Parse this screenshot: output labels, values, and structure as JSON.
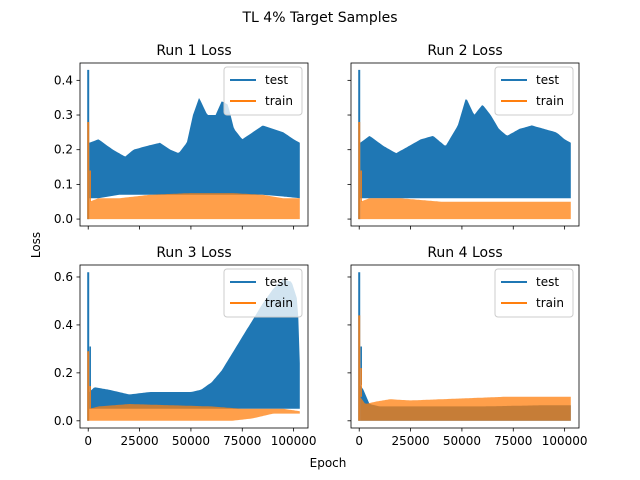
{
  "figure": {
    "suptitle": "TL 4% Target Samples",
    "xlabel": "Epoch",
    "ylabel": "Loss"
  },
  "colors": {
    "test": "#1f77b4",
    "train": "#ff7f0e",
    "overlap": "#c07a3a"
  },
  "chart_data": [
    {
      "type": "line",
      "title": "Run 1 Loss",
      "xlim": [
        -4000,
        107000
      ],
      "ylim": [
        -0.02,
        0.45
      ],
      "yticks": [
        0.0,
        0.1,
        0.2,
        0.3,
        0.4
      ],
      "xticks": [
        0,
        25000,
        50000,
        75000,
        100000
      ],
      "legend": [
        "test",
        "train"
      ],
      "legend_position": "top-right",
      "series": [
        {
          "name": "test",
          "spike": 0.43,
          "upper": [
            [
              500,
              0.22
            ],
            [
              5000,
              0.23
            ],
            [
              12000,
              0.2
            ],
            [
              18000,
              0.18
            ],
            [
              22000,
              0.2
            ],
            [
              28000,
              0.21
            ],
            [
              35000,
              0.22
            ],
            [
              40000,
              0.2
            ],
            [
              44000,
              0.19
            ],
            [
              48000,
              0.22
            ],
            [
              51000,
              0.3
            ],
            [
              54000,
              0.35
            ],
            [
              58000,
              0.3
            ],
            [
              62000,
              0.3
            ],
            [
              65000,
              0.34
            ],
            [
              68000,
              0.33
            ],
            [
              71000,
              0.26
            ],
            [
              75000,
              0.23
            ],
            [
              80000,
              0.25
            ],
            [
              85000,
              0.27
            ],
            [
              90000,
              0.26
            ],
            [
              95000,
              0.25
            ],
            [
              100000,
              0.23
            ],
            [
              103000,
              0.22
            ]
          ],
          "lower": [
            [
              500,
              0.06
            ],
            [
              5000,
              0.06
            ],
            [
              15000,
              0.07
            ],
            [
              25000,
              0.07
            ],
            [
              35000,
              0.07
            ],
            [
              50000,
              0.07
            ],
            [
              70000,
              0.07
            ],
            [
              85000,
              0.07
            ],
            [
              95000,
              0.065
            ],
            [
              103000,
              0.06
            ]
          ]
        },
        {
          "name": "train",
          "spike": 0.28,
          "upper": [
            [
              500,
              0.05
            ],
            [
              5000,
              0.06
            ],
            [
              15000,
              0.06
            ],
            [
              30000,
              0.07
            ],
            [
              50000,
              0.075
            ],
            [
              70000,
              0.075
            ],
            [
              85000,
              0.07
            ],
            [
              95000,
              0.06
            ],
            [
              103000,
              0.06
            ]
          ],
          "lower": [
            [
              500,
              0.0
            ],
            [
              103000,
              0.0
            ]
          ]
        }
      ]
    },
    {
      "type": "line",
      "title": "Run 2 Loss",
      "xlim": [
        -4000,
        107000
      ],
      "ylim": [
        -0.02,
        0.45
      ],
      "yticks": [
        0.0,
        0.1,
        0.2,
        0.3,
        0.4
      ],
      "xticks": [
        0,
        25000,
        50000,
        75000,
        100000
      ],
      "legend": [
        "test",
        "train"
      ],
      "legend_position": "top-right",
      "series": [
        {
          "name": "test",
          "spike": 0.43,
          "upper": [
            [
              500,
              0.22
            ],
            [
              5000,
              0.24
            ],
            [
              12000,
              0.21
            ],
            [
              18000,
              0.19
            ],
            [
              24000,
              0.21
            ],
            [
              30000,
              0.23
            ],
            [
              36000,
              0.24
            ],
            [
              42000,
              0.21
            ],
            [
              48000,
              0.27
            ],
            [
              52000,
              0.35
            ],
            [
              56000,
              0.3
            ],
            [
              60000,
              0.33
            ],
            [
              64000,
              0.3
            ],
            [
              68000,
              0.26
            ],
            [
              72000,
              0.24
            ],
            [
              78000,
              0.26
            ],
            [
              84000,
              0.27
            ],
            [
              90000,
              0.26
            ],
            [
              96000,
              0.25
            ],
            [
              100000,
              0.23
            ],
            [
              103000,
              0.22
            ]
          ],
          "lower": [
            [
              500,
              0.06
            ],
            [
              10000,
              0.06
            ],
            [
              25000,
              0.06
            ],
            [
              50000,
              0.06
            ],
            [
              75000,
              0.06
            ],
            [
              103000,
              0.06
            ]
          ]
        },
        {
          "name": "train",
          "spike": 0.28,
          "upper": [
            [
              500,
              0.05
            ],
            [
              5000,
              0.06
            ],
            [
              20000,
              0.06
            ],
            [
              40000,
              0.05
            ],
            [
              60000,
              0.05
            ],
            [
              80000,
              0.05
            ],
            [
              103000,
              0.05
            ]
          ],
          "lower": [
            [
              500,
              0.0
            ],
            [
              103000,
              0.0
            ]
          ]
        }
      ]
    },
    {
      "type": "line",
      "title": "Run 3 Loss",
      "xlim": [
        -4000,
        107000
      ],
      "ylim": [
        -0.03,
        0.65
      ],
      "yticks": [
        0.0,
        0.2,
        0.4,
        0.6
      ],
      "xticks": [
        0,
        25000,
        50000,
        75000,
        100000
      ],
      "xticklabels": [
        "0",
        "25000",
        "50000",
        "75000",
        "100000"
      ],
      "legend": [
        "test",
        "train"
      ],
      "legend_position": "top-right",
      "series": [
        {
          "name": "test",
          "spike": 0.62,
          "upper": [
            [
              500,
              0.12
            ],
            [
              3000,
              0.14
            ],
            [
              10000,
              0.13
            ],
            [
              20000,
              0.11
            ],
            [
              30000,
              0.12
            ],
            [
              40000,
              0.12
            ],
            [
              50000,
              0.12
            ],
            [
              55000,
              0.13
            ],
            [
              60000,
              0.16
            ],
            [
              65000,
              0.21
            ],
            [
              70000,
              0.28
            ],
            [
              75000,
              0.35
            ],
            [
              80000,
              0.42
            ],
            [
              85000,
              0.49
            ],
            [
              90000,
              0.55
            ],
            [
              95000,
              0.59
            ],
            [
              99000,
              0.58
            ],
            [
              102000,
              0.5
            ],
            [
              103000,
              0.24
            ]
          ],
          "lower": [
            [
              500,
              0.05
            ],
            [
              20000,
              0.05
            ],
            [
              50000,
              0.05
            ],
            [
              80000,
              0.05
            ],
            [
              103000,
              0.05
            ]
          ]
        },
        {
          "name": "train",
          "spike": 0.29,
          "upper": [
            [
              500,
              0.05
            ],
            [
              5000,
              0.06
            ],
            [
              20000,
              0.07
            ],
            [
              40000,
              0.065
            ],
            [
              60000,
              0.06
            ],
            [
              75000,
              0.05
            ],
            [
              85000,
              0.05
            ],
            [
              95000,
              0.05
            ],
            [
              103000,
              0.04
            ]
          ],
          "lower": [
            [
              500,
              0.0
            ],
            [
              70000,
              0.0
            ],
            [
              80000,
              0.01
            ],
            [
              90000,
              0.03
            ],
            [
              103000,
              0.03
            ]
          ]
        }
      ]
    },
    {
      "type": "line",
      "title": "Run 4 Loss",
      "xlim": [
        -4000,
        107000
      ],
      "ylim": [
        -0.03,
        0.65
      ],
      "yticks": [
        0.0,
        0.2,
        0.4,
        0.6
      ],
      "xticks": [
        0,
        25000,
        50000,
        75000,
        100000
      ],
      "xticklabels": [
        "0",
        "25000",
        "50000",
        "75000",
        "100000"
      ],
      "legend": [
        "test",
        "train"
      ],
      "legend_position": "top-right",
      "series": [
        {
          "name": "test",
          "spike": 0.62,
          "upper": [
            [
              500,
              0.15
            ],
            [
              2000,
              0.13
            ],
            [
              5000,
              0.07
            ],
            [
              10000,
              0.06
            ],
            [
              30000,
              0.06
            ],
            [
              60000,
              0.06
            ],
            [
              90000,
              0.065
            ],
            [
              103000,
              0.065
            ]
          ],
          "lower": [
            [
              500,
              0.0
            ],
            [
              103000,
              0.0
            ]
          ]
        },
        {
          "name": "train",
          "spike": 0.44,
          "upper": [
            [
              500,
              0.1
            ],
            [
              3000,
              0.07
            ],
            [
              8000,
              0.08
            ],
            [
              15000,
              0.09
            ],
            [
              25000,
              0.085
            ],
            [
              40000,
              0.09
            ],
            [
              55000,
              0.095
            ],
            [
              70000,
              0.1
            ],
            [
              85000,
              0.1
            ],
            [
              95000,
              0.1
            ],
            [
              103000,
              0.1
            ]
          ],
          "lower": [
            [
              500,
              0.0
            ],
            [
              103000,
              0.0
            ]
          ]
        }
      ]
    }
  ]
}
